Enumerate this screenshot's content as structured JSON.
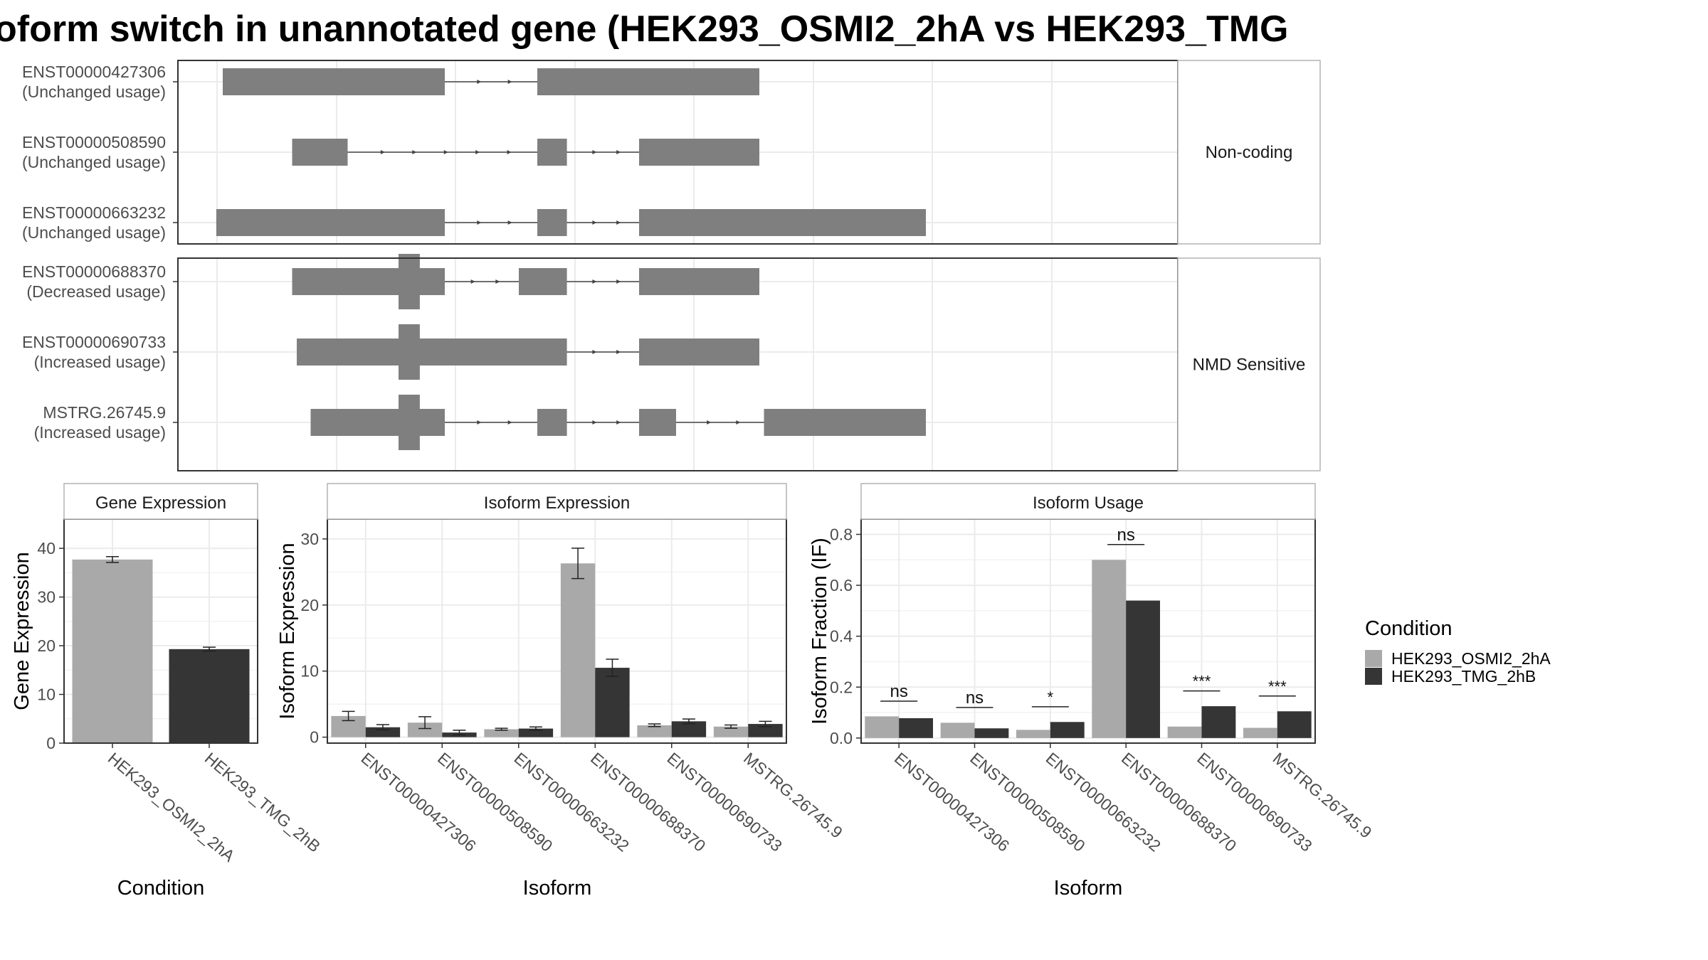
{
  "title": "oform switch in unannotated gene (HEK293_OSMI2_2hA vs HEK293_TMG",
  "colors": {
    "exon": "#7f7f7f",
    "intron": "#444444",
    "grid": "#ebebeb",
    "panel_border": "#333333",
    "strip_border": "#b3b3b3",
    "cond_a": "#a9a9a9",
    "cond_b": "#353535"
  },
  "transcript_panel": {
    "x_domain": [
      0,
      100
    ],
    "groups": [
      {
        "label": "Non-coding",
        "transcripts": [
          {
            "id": "ENST00000427306",
            "status": "(Unchanged usage)",
            "exons": [
              [
                1,
                25
              ],
              [
                35,
                59
              ]
            ],
            "cds": []
          },
          {
            "id": "ENST00000508590",
            "status": "(Unchanged usage)",
            "exons": [
              [
                8.5,
                14.5
              ],
              [
                35,
                38.2
              ],
              [
                46,
                59
              ]
            ],
            "cds": []
          },
          {
            "id": "ENST00000663232",
            "status": "(Unchanged usage)",
            "exons": [
              [
                0.3,
                25
              ],
              [
                35,
                38.2
              ],
              [
                46,
                77
              ]
            ],
            "cds": []
          }
        ]
      },
      {
        "label": "NMD Sensitive",
        "transcripts": [
          {
            "id": "ENST00000688370",
            "status": "(Decreased usage)",
            "exons": [
              [
                8.5,
                25
              ],
              [
                33,
                38.2
              ],
              [
                46,
                59
              ]
            ],
            "cds": [
              [
                20,
                22.3
              ]
            ]
          },
          {
            "id": "ENST00000690733",
            "status": "(Increased usage)",
            "exons": [
              [
                9,
                38.2
              ],
              [
                46,
                59
              ]
            ],
            "cds": [
              [
                20,
                22.3
              ]
            ]
          },
          {
            "id": "MSTRG.26745.9",
            "status": "(Increased usage)",
            "exons": [
              [
                10.5,
                25
              ],
              [
                35,
                38.2
              ],
              [
                46,
                50
              ],
              [
                59.5,
                77
              ]
            ],
            "cds": [
              [
                20,
                22.3
              ]
            ]
          }
        ]
      }
    ]
  },
  "chart_data": [
    {
      "type": "bar",
      "title": "Gene Expression",
      "xlabel": "Condition",
      "ylabel": "Gene Expression",
      "ylim": [
        0,
        46
      ],
      "yticks": [
        0,
        10,
        20,
        30,
        40
      ],
      "categories": [
        "HEK293_OSMI2_2hA",
        "HEK293_TMG_2hB"
      ],
      "series": [
        {
          "name": "HEK293_OSMI2_2hA",
          "values": [
            37.7,
            null
          ],
          "errors": [
            0.6,
            null
          ]
        },
        {
          "name": "HEK293_TMG_2hB",
          "values": [
            null,
            19.3
          ],
          "errors": [
            null,
            0.4
          ]
        }
      ]
    },
    {
      "type": "bar",
      "title": "Isoform Expression",
      "xlabel": "Isoform",
      "ylabel": "Isoform Expression",
      "ylim": [
        -0.9,
        33
      ],
      "yticks": [
        0,
        10,
        20,
        30
      ],
      "categories": [
        "ENST00000427306",
        "ENST00000508590",
        "ENST00000663232",
        "ENST00000688370",
        "ENST00000690733",
        "MSTRG.26745.9"
      ],
      "series": [
        {
          "name": "HEK293_OSMI2_2hA",
          "values": [
            3.2,
            2.2,
            1.2,
            26.3,
            1.8,
            1.6
          ],
          "errors": [
            0.7,
            0.9,
            0.15,
            2.3,
            0.2,
            0.25
          ]
        },
        {
          "name": "HEK293_TMG_2hB",
          "values": [
            1.5,
            0.7,
            1.3,
            10.5,
            2.4,
            2.0
          ],
          "errors": [
            0.4,
            0.35,
            0.25,
            1.3,
            0.35,
            0.4
          ]
        }
      ]
    },
    {
      "type": "bar",
      "title": "Isoform Usage",
      "xlabel": "Isoform",
      "ylabel": "Isoform Fraction (IF)",
      "ylim": [
        -0.02,
        0.86
      ],
      "yticks": [
        "0.0",
        "0.2",
        "0.4",
        "0.6",
        "0.8"
      ],
      "categories": [
        "ENST00000427306",
        "ENST00000508590",
        "ENST00000663232",
        "ENST00000688370",
        "ENST00000690733",
        "MSTRG.26745.9"
      ],
      "significance": [
        "ns",
        "ns",
        "*",
        "ns",
        "***",
        "***"
      ],
      "series": [
        {
          "name": "HEK293_OSMI2_2hA",
          "values": [
            0.085,
            0.06,
            0.032,
            0.7,
            0.045,
            0.04
          ]
        },
        {
          "name": "HEK293_TMG_2hB",
          "values": [
            0.078,
            0.038,
            0.063,
            0.54,
            0.125,
            0.105
          ]
        }
      ]
    }
  ],
  "legend": {
    "title": "Condition",
    "placement": "right",
    "items": [
      "HEK293_OSMI2_2hA",
      "HEK293_TMG_2hB"
    ]
  }
}
